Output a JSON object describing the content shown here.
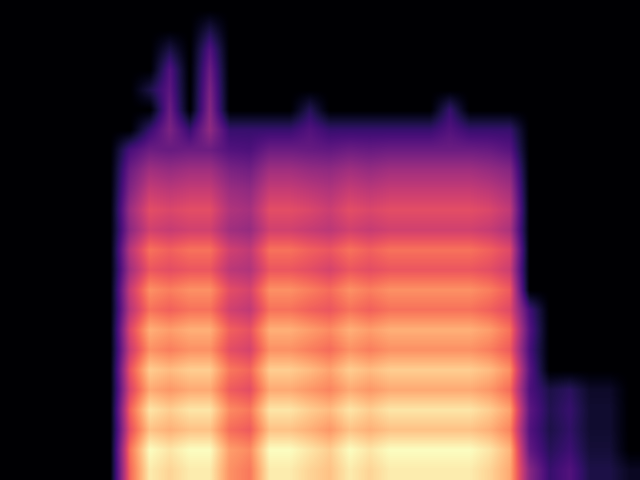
{
  "chart_data": {
    "type": "heatmap",
    "color": "magma",
    "tick_labels": false,
    "cells": [
      [
        0,
        0,
        0,
        0,
        0,
        0,
        0,
        0,
        0,
        0,
        0,
        0,
        0,
        0,
        0,
        0,
        0,
        0,
        0,
        0,
        0,
        0,
        0,
        0,
        0,
        0,
        0,
        0,
        0,
        0,
        0,
        0
      ],
      [
        0,
        0,
        0,
        0,
        0,
        0,
        0,
        0,
        0,
        0,
        10,
        0,
        0,
        0,
        0,
        0,
        0,
        0,
        0,
        0,
        0,
        0,
        0,
        0,
        0,
        0,
        0,
        0,
        0,
        0,
        0,
        0
      ],
      [
        0,
        0,
        0,
        0,
        0,
        0,
        0,
        0,
        10,
        0,
        20,
        0,
        0,
        0,
        0,
        0,
        0,
        0,
        0,
        0,
        0,
        0,
        0,
        0,
        0,
        0,
        0,
        0,
        0,
        0,
        0,
        0
      ],
      [
        0,
        0,
        0,
        0,
        0,
        0,
        0,
        0,
        20,
        0,
        25,
        0,
        0,
        0,
        0,
        0,
        0,
        0,
        0,
        0,
        0,
        0,
        0,
        0,
        0,
        0,
        0,
        0,
        0,
        0,
        0,
        0
      ],
      [
        0,
        0,
        0,
        0,
        0,
        0,
        0,
        10,
        22,
        0,
        28,
        0,
        0,
        0,
        0,
        0,
        0,
        0,
        0,
        0,
        0,
        0,
        0,
        0,
        0,
        0,
        0,
        0,
        0,
        0,
        0,
        0
      ],
      [
        0,
        0,
        0,
        0,
        0,
        0,
        0,
        0,
        25,
        0,
        30,
        0,
        0,
        0,
        0,
        12,
        0,
        0,
        0,
        0,
        0,
        0,
        15,
        0,
        0,
        0,
        0,
        0,
        0,
        0,
        0,
        0
      ],
      [
        0,
        0,
        0,
        0,
        0,
        0,
        0,
        15,
        28,
        15,
        32,
        15,
        15,
        15,
        15,
        20,
        15,
        15,
        15,
        15,
        15,
        15,
        20,
        15,
        15,
        15,
        0,
        0,
        0,
        0,
        0,
        0
      ],
      [
        0,
        0,
        0,
        0,
        0,
        0,
        18,
        25,
        24,
        25,
        25,
        20,
        19,
        25,
        25,
        24,
        23,
        25,
        24,
        25,
        25,
        25,
        25,
        25,
        24,
        21,
        0,
        0,
        0,
        0,
        0,
        0
      ],
      [
        0,
        0,
        0,
        0,
        0,
        0,
        25,
        35,
        33,
        35,
        35,
        28,
        26,
        35,
        35,
        33,
        32,
        35,
        33,
        35,
        35,
        35,
        35,
        35,
        33,
        30,
        0,
        0,
        0,
        0,
        0,
        0
      ],
      [
        0,
        0,
        0,
        0,
        0,
        0,
        29,
        42,
        40,
        42,
        42,
        34,
        32,
        42,
        42,
        40,
        38,
        42,
        40,
        42,
        42,
        42,
        42,
        42,
        40,
        36,
        0,
        0,
        0,
        0,
        0,
        0
      ],
      [
        0,
        0,
        0,
        0,
        0,
        0,
        34,
        48,
        46,
        48,
        48,
        38,
        36,
        48,
        48,
        46,
        43,
        48,
        46,
        48,
        48,
        48,
        48,
        48,
        46,
        41,
        0,
        0,
        0,
        0,
        0,
        0
      ],
      [
        0,
        0,
        0,
        0,
        0,
        0,
        31,
        44,
        42,
        44,
        44,
        35,
        33,
        44,
        44,
        42,
        40,
        44,
        42,
        44,
        44,
        44,
        44,
        44,
        42,
        37,
        0,
        0,
        0,
        0,
        0,
        0
      ],
      [
        0,
        0,
        0,
        0,
        0,
        0,
        39,
        55,
        52,
        55,
        55,
        44,
        41,
        55,
        55,
        52,
        50,
        55,
        52,
        55,
        55,
        55,
        55,
        55,
        52,
        47,
        0,
        0,
        0,
        0,
        0,
        0
      ],
      [
        0,
        0,
        0,
        0,
        0,
        0,
        35,
        50,
        48,
        50,
        50,
        40,
        38,
        50,
        50,
        48,
        45,
        50,
        48,
        50,
        50,
        50,
        50,
        50,
        48,
        43,
        0,
        0,
        0,
        0,
        0,
        0
      ],
      [
        0,
        0,
        0,
        0,
        0,
        0,
        42,
        60,
        57,
        60,
        60,
        48,
        45,
        60,
        60,
        57,
        54,
        60,
        57,
        60,
        60,
        60,
        60,
        60,
        57,
        51,
        0,
        0,
        0,
        0,
        0,
        0
      ],
      [
        0,
        0,
        0,
        0,
        0,
        0,
        39,
        55,
        52,
        55,
        55,
        44,
        41,
        55,
        55,
        52,
        50,
        55,
        52,
        55,
        55,
        55,
        55,
        55,
        52,
        47,
        17,
        0,
        0,
        0,
        0,
        0
      ],
      [
        0,
        0,
        0,
        0,
        0,
        0,
        46,
        65,
        62,
        65,
        65,
        52,
        49,
        65,
        65,
        62,
        59,
        65,
        62,
        65,
        65,
        65,
        65,
        65,
        62,
        55,
        20,
        0,
        0,
        0,
        0,
        0
      ],
      [
        0,
        0,
        0,
        0,
        0,
        0,
        42,
        60,
        57,
        60,
        60,
        48,
        45,
        60,
        60,
        57,
        54,
        60,
        57,
        60,
        60,
        60,
        60,
        60,
        57,
        51,
        18,
        0,
        0,
        0,
        0,
        0
      ],
      [
        0,
        0,
        0,
        0,
        0,
        0,
        49,
        70,
        67,
        70,
        70,
        56,
        53,
        70,
        70,
        67,
        63,
        70,
        67,
        70,
        70,
        70,
        70,
        70,
        67,
        60,
        21,
        0,
        0,
        0,
        0,
        0
      ],
      [
        0,
        0,
        0,
        0,
        0,
        0,
        45,
        64,
        61,
        64,
        64,
        51,
        48,
        64,
        64,
        61,
        58,
        64,
        61,
        64,
        64,
        64,
        64,
        64,
        61,
        54,
        19,
        10,
        13,
        6,
        6,
        0
      ],
      [
        0,
        0,
        0,
        0,
        0,
        0,
        52,
        74,
        70,
        74,
        74,
        59,
        56,
        74,
        74,
        70,
        67,
        74,
        70,
        74,
        74,
        74,
        74,
        74,
        70,
        63,
        22,
        11,
        15,
        7,
        7,
        0
      ],
      [
        0,
        0,
        0,
        0,
        0,
        0,
        48,
        68,
        65,
        68,
        68,
        54,
        51,
        68,
        68,
        65,
        61,
        68,
        65,
        68,
        68,
        68,
        68,
        68,
        65,
        58,
        20,
        10,
        14,
        7,
        7,
        0
      ],
      [
        0,
        0,
        0,
        0,
        0,
        0,
        55,
        78,
        74,
        78,
        78,
        62,
        59,
        78,
        78,
        74,
        70,
        78,
        74,
        78,
        78,
        78,
        78,
        78,
        74,
        66,
        23,
        12,
        16,
        8,
        8,
        0
      ],
      [
        0,
        0,
        0,
        0,
        0,
        0,
        53,
        75,
        71,
        75,
        75,
        60,
        56,
        75,
        75,
        71,
        68,
        75,
        71,
        75,
        75,
        75,
        75,
        75,
        71,
        64,
        30,
        15,
        20,
        10,
        10,
        5
      ]
    ]
  }
}
